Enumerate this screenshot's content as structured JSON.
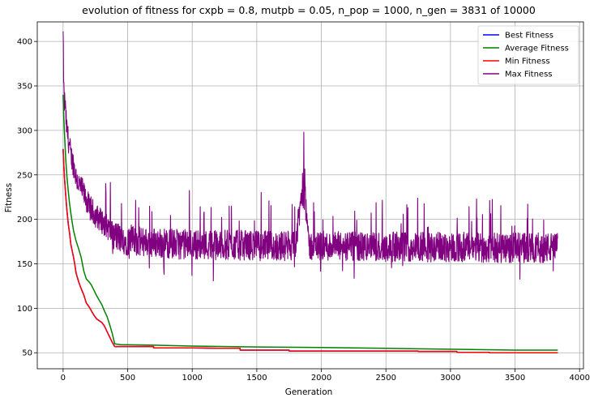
{
  "chart_data": {
    "type": "line",
    "title": "evolution of fitness for cxpb = 0.8, mutpb = 0.05, n_pop = 1000, n_gen = 3831 of 10000",
    "xlabel": "Generation",
    "ylabel": "Fitness",
    "xlim": [
      -200,
      4030
    ],
    "ylim": [
      32,
      422
    ],
    "xticks": [
      0,
      500,
      1000,
      1500,
      2000,
      2500,
      3000,
      3500,
      4000
    ],
    "yticks": [
      50,
      100,
      150,
      200,
      250,
      300,
      350,
      400
    ],
    "grid": true,
    "legend_position": "top-right",
    "series": [
      {
        "name": "Best Fitness",
        "color": "#0000ff",
        "x": [
          0,
          5,
          10,
          20,
          30,
          40,
          50,
          60,
          70,
          80,
          90,
          100,
          120,
          140,
          160,
          180,
          200,
          220,
          240,
          260,
          280,
          300,
          320,
          340,
          360,
          380,
          400,
          450,
          500,
          700,
          701,
          1000,
          1200,
          1370,
          1371,
          1600,
          1750,
          1751,
          2500,
          2750,
          2751,
          3000,
          3050,
          3051,
          3300,
          3301,
          3831
        ],
        "y": [
          279,
          262,
          248,
          227,
          210,
          195,
          185,
          172,
          165,
          158,
          150,
          140,
          130,
          122,
          115,
          106,
          102,
          97,
          92,
          88,
          86,
          84,
          80,
          74,
          68,
          62,
          57,
          57,
          57,
          57,
          55.5,
          55.5,
          55,
          55,
          53,
          53,
          53,
          52,
          52,
          52,
          51.5,
          51.5,
          51.5,
          50.5,
          50.5,
          50,
          50
        ]
      },
      {
        "name": "Average Fitness",
        "color": "#008000",
        "x": [
          0,
          5,
          10,
          20,
          30,
          40,
          50,
          60,
          70,
          80,
          90,
          100,
          120,
          140,
          160,
          180,
          200,
          220,
          240,
          260,
          280,
          300,
          320,
          340,
          360,
          380,
          400,
          450,
          500,
          700,
          1000,
          1500,
          2000,
          2500,
          3000,
          3500,
          3831
        ],
        "y": [
          340,
          315,
          298,
          268,
          248,
          232,
          218,
          207,
          197,
          188,
          182,
          176,
          167,
          157,
          142,
          133,
          130,
          126,
          120,
          114,
          109,
          104,
          97,
          91,
          82,
          72,
          60,
          59,
          59,
          58.5,
          57.5,
          56.5,
          56,
          55,
          54,
          53,
          53
        ]
      },
      {
        "name": "Min Fitness",
        "color": "#ff0000",
        "x": [
          0,
          5,
          10,
          20,
          30,
          40,
          50,
          60,
          70,
          80,
          90,
          100,
          120,
          140,
          160,
          180,
          200,
          220,
          240,
          260,
          280,
          300,
          320,
          340,
          360,
          380,
          400,
          450,
          500,
          700,
          701,
          1000,
          1200,
          1370,
          1371,
          1600,
          1750,
          1751,
          2500,
          2750,
          2751,
          3000,
          3050,
          3051,
          3300,
          3301,
          3831
        ],
        "y": [
          279,
          262,
          248,
          227,
          210,
          195,
          185,
          172,
          165,
          158,
          150,
          140,
          130,
          122,
          115,
          106,
          102,
          97,
          92,
          88,
          86,
          84,
          80,
          74,
          68,
          62,
          57,
          57,
          57,
          57,
          55.5,
          55.5,
          55,
          55,
          53,
          53,
          53,
          52,
          52,
          52,
          51.5,
          51.5,
          51.5,
          50.5,
          50.5,
          50,
          50
        ]
      },
      {
        "name": "Max Fitness",
        "color": "#800080",
        "x": [
          0,
          3,
          6,
          10,
          15,
          20,
          30,
          40,
          50,
          60,
          80,
          100,
          120,
          150,
          200,
          250,
          300,
          350,
          400,
          450,
          500,
          600,
          700,
          800,
          900,
          1000,
          1200,
          1400,
          1600,
          1800,
          1870,
          1900,
          2000,
          2200,
          2400,
          2600,
          2800,
          3000,
          3200,
          3400,
          3600,
          3831
        ],
        "y": [
          407,
          372,
          345,
          330,
          335,
          315,
          300,
          290,
          282,
          272,
          262,
          248,
          240,
          232,
          215,
          205,
          198,
          190,
          182,
          178,
          176,
          175,
          174,
          173,
          172,
          172,
          171,
          171,
          170,
          170,
          255,
          170,
          170,
          169,
          169,
          169,
          169,
          169,
          168,
          168,
          168,
          168
        ],
        "noise": true
      }
    ]
  }
}
